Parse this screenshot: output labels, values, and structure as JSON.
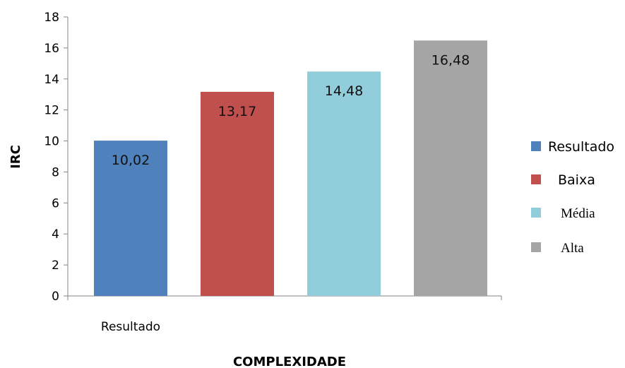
{
  "chart_data": {
    "type": "bar",
    "xlabel": "COMPLEXIDADE",
    "ylabel": "IRC",
    "categories": [
      "Resultado"
    ],
    "ylim": [
      0,
      18
    ],
    "yticks": [
      0,
      2,
      4,
      6,
      8,
      10,
      12,
      14,
      16,
      18
    ],
    "series": [
      {
        "name": "Resultado",
        "values": [
          10.02
        ],
        "label": "10,02",
        "color": "#4f81bd"
      },
      {
        "name": "Baixa",
        "values": [
          13.17
        ],
        "label": "13,17",
        "color": "#c0504d"
      },
      {
        "name": "Média",
        "values": [
          14.48
        ],
        "label": "14,48",
        "color": "#92cddc"
      },
      {
        "name": "Alta",
        "values": [
          16.48
        ],
        "label": "16,48",
        "color": "#a5a5a5"
      }
    ],
    "grid": false,
    "legend_position": "right"
  }
}
